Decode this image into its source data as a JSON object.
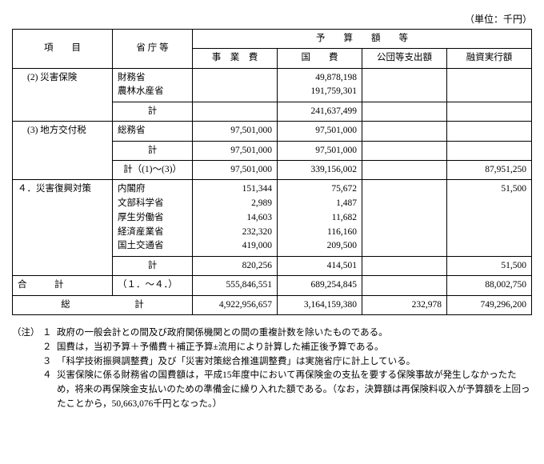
{
  "unit_label": "（単位：千円）",
  "header": {
    "item": "項　　目",
    "agency": "省 庁 等",
    "budget_group": "予　　算　　額　　等",
    "business_cost": "事　業　費",
    "national_cost": "国　　費",
    "corp_expense": "公団等支出額",
    "financing": "融資実行額"
  },
  "rows": {
    "r1": {
      "item": "(2) 災害保険",
      "agencies": [
        "財務省",
        "農林水産省"
      ],
      "national": [
        "49,878,198",
        "191,759,301"
      ]
    },
    "r1_sub": {
      "label": "計",
      "national": "241,637,499"
    },
    "r2": {
      "item": "(3) 地方交付税",
      "agencies": [
        "総務省"
      ],
      "business": [
        "97,501,000"
      ],
      "national": [
        "97,501,000"
      ]
    },
    "r2_sub": {
      "label": "計",
      "business": "97,501,000",
      "national": "97,501,000"
    },
    "r2_tot": {
      "label": "計（(1)～(3)）",
      "business": "97,501,000",
      "national": "339,156,002",
      "financing": "87,951,250"
    },
    "r3": {
      "item": "４．災害復興対策",
      "agencies": [
        "内閣府",
        "文部科学省",
        "厚生労働省",
        "経済産業省",
        "国土交通省"
      ],
      "business": [
        "151,344",
        "2,989",
        "14,603",
        "232,320",
        "419,000"
      ],
      "national": [
        "75,672",
        "1,487",
        "11,682",
        "116,160",
        "209,500"
      ],
      "financing": [
        "",
        "",
        "51,500",
        "",
        ""
      ]
    },
    "r3_sub": {
      "label": "計",
      "business": "820,256",
      "national": "414,501",
      "financing": "51,500"
    },
    "grand": {
      "item": "合　　　計",
      "agency": "（１．～４．）",
      "business": "555,846,551",
      "national": "689,254,845",
      "financing": "88,002,750"
    },
    "total": {
      "item": "総　　　　　　　計",
      "business": "4,922,956,657",
      "national": "3,164,159,380",
      "corp": "232,978",
      "financing": "749,296,200"
    }
  },
  "notes": {
    "tag": "（注）",
    "items": [
      {
        "n": "１",
        "t": "政府の一般会計との間及び政府関係機関との間の重複計数を除いたものである。"
      },
      {
        "n": "２",
        "t": "国費は，当初予算＋予備費＋補正予算±流用により計算した補正後予算である。"
      },
      {
        "n": "３",
        "t": "「科学技術振興調整費」及び「災害対策総合推進調整費」は実施省庁に計上している。"
      },
      {
        "n": "４",
        "t": "災害保険に係る財務省の国費額は，平成15年度中において再保険金の支払を要する保険事故が発生しなかったため，将来の再保険金支払いのための準備金に繰り入れた額である。（なお，決算額は再保険料収入が予算額を上回ったことから，50,663,076千円となった。）"
      }
    ]
  }
}
